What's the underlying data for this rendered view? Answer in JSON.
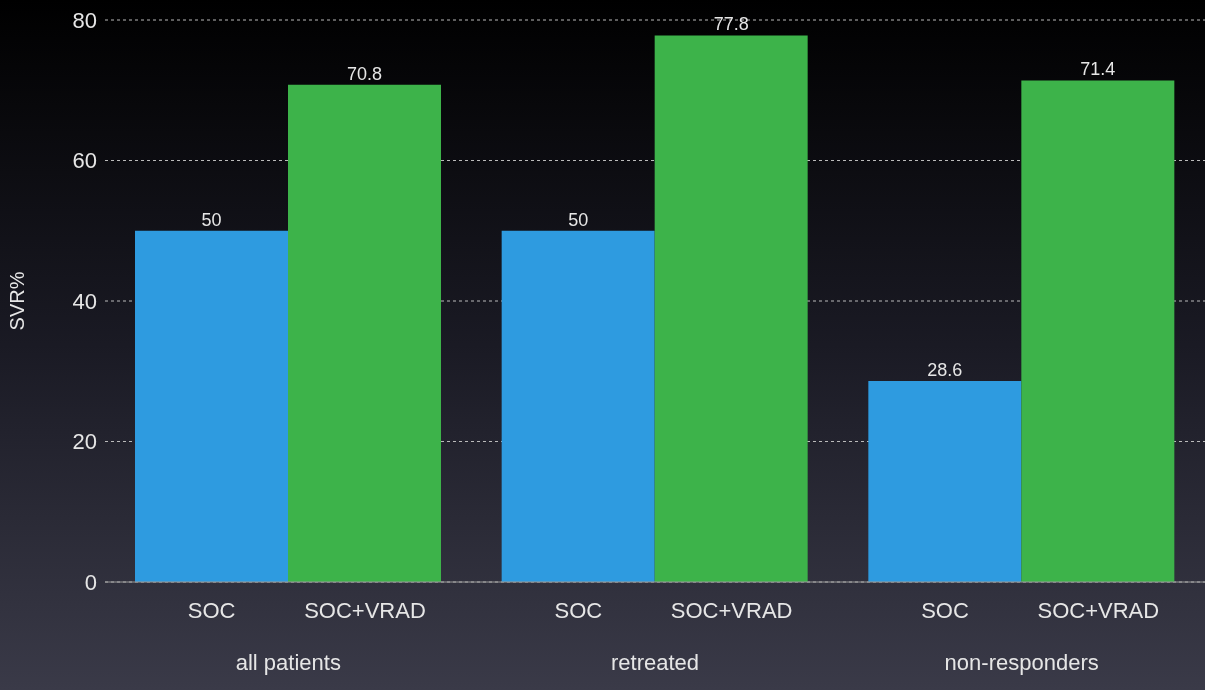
{
  "chart_data": {
    "type": "bar",
    "ylabel": "SVR%",
    "categories": [
      "all patients",
      "retreated",
      "non-responders"
    ],
    "series": [
      {
        "name": "SOC",
        "color": "#2e9be0",
        "values": [
          50,
          50,
          28.6
        ]
      },
      {
        "name": "SOC+VRAD",
        "color": "#3db34a",
        "values": [
          70.8,
          77.8,
          71.4
        ]
      }
    ],
    "ylim": [
      0,
      80
    ],
    "yticks": [
      0,
      20,
      40,
      60,
      80
    ],
    "grid": "y",
    "data_labels": true,
    "legend": false
  }
}
